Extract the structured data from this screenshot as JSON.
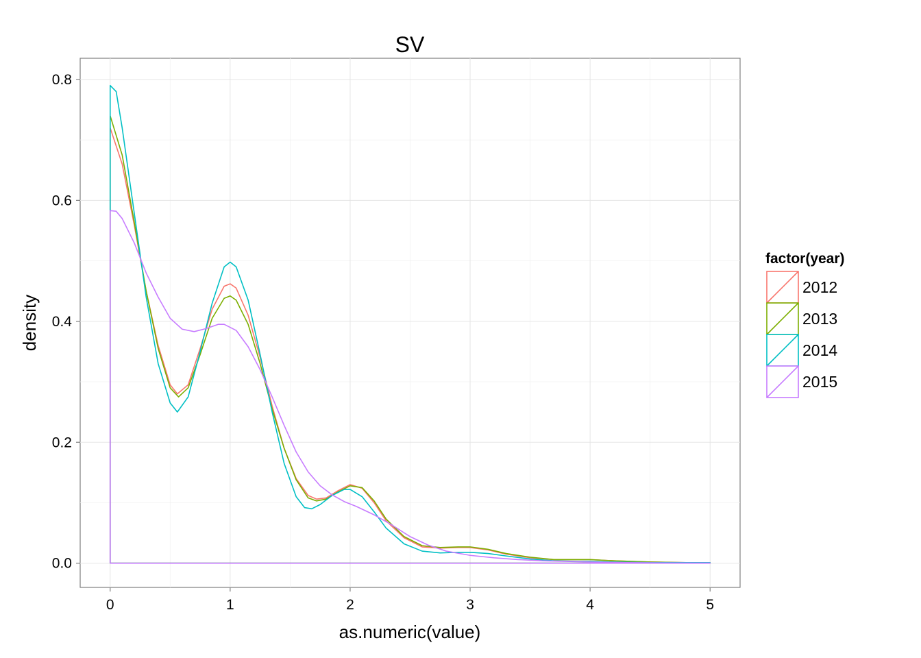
{
  "chart_data": {
    "type": "line",
    "title": "SV",
    "xlabel": "as.numeric(value)",
    "ylabel": "density",
    "xlim": [
      -0.25,
      5.25
    ],
    "ylim": [
      -0.04,
      0.835
    ],
    "xticks": [
      "0",
      "1",
      "2",
      "3",
      "4",
      "5"
    ],
    "yticks": [
      "0.0",
      "0.2",
      "0.4",
      "0.6",
      "0.8"
    ],
    "grid": true,
    "legend": {
      "title": "factor(year)",
      "position": "right"
    },
    "series": [
      {
        "name": "2012",
        "color": "#F8766D",
        "x": [
          0,
          0.1,
          0.2,
          0.3,
          0.4,
          0.5,
          0.56,
          0.65,
          0.75,
          0.85,
          0.95,
          1.0,
          1.05,
          1.15,
          1.25,
          1.35,
          1.45,
          1.55,
          1.65,
          1.72,
          1.8,
          1.9,
          2.0,
          2.1,
          2.2,
          2.3,
          2.45,
          2.6,
          2.75,
          2.9,
          3.0,
          3.15,
          3.3,
          3.5,
          3.7,
          3.9,
          4.0,
          4.2,
          4.5,
          4.8,
          5.0
        ],
        "y": [
          0.72,
          0.66,
          0.56,
          0.45,
          0.36,
          0.295,
          0.28,
          0.295,
          0.355,
          0.42,
          0.458,
          0.462,
          0.455,
          0.41,
          0.34,
          0.26,
          0.19,
          0.14,
          0.112,
          0.106,
          0.108,
          0.12,
          0.13,
          0.124,
          0.1,
          0.07,
          0.042,
          0.027,
          0.025,
          0.026,
          0.026,
          0.022,
          0.015,
          0.009,
          0.006,
          0.006,
          0.006,
          0.004,
          0.002,
          0.001,
          0.001
        ]
      },
      {
        "name": "2013",
        "color": "#7CAE00",
        "x": [
          0,
          0.1,
          0.2,
          0.3,
          0.4,
          0.5,
          0.57,
          0.65,
          0.75,
          0.85,
          0.95,
          1.0,
          1.05,
          1.15,
          1.25,
          1.35,
          1.45,
          1.55,
          1.65,
          1.72,
          1.8,
          1.9,
          2.0,
          2.1,
          2.2,
          2.3,
          2.45,
          2.6,
          2.75,
          2.9,
          3.0,
          3.15,
          3.3,
          3.5,
          3.7,
          3.9,
          4.0,
          4.2,
          4.5,
          4.8,
          5.0
        ],
        "y": [
          0.74,
          0.675,
          0.565,
          0.45,
          0.355,
          0.29,
          0.275,
          0.29,
          0.345,
          0.405,
          0.438,
          0.442,
          0.435,
          0.395,
          0.33,
          0.255,
          0.19,
          0.138,
          0.108,
          0.103,
          0.106,
          0.118,
          0.128,
          0.125,
          0.103,
          0.073,
          0.044,
          0.029,
          0.026,
          0.027,
          0.027,
          0.023,
          0.016,
          0.01,
          0.006,
          0.006,
          0.006,
          0.004,
          0.002,
          0.001,
          0.001
        ]
      },
      {
        "name": "2014",
        "color": "#00BFC4",
        "x": [
          0,
          0.05,
          0.1,
          0.2,
          0.3,
          0.4,
          0.5,
          0.56,
          0.65,
          0.75,
          0.85,
          0.95,
          1.0,
          1.05,
          1.15,
          1.25,
          1.35,
          1.45,
          1.55,
          1.62,
          1.68,
          1.75,
          1.85,
          1.95,
          2.0,
          2.1,
          2.2,
          2.3,
          2.45,
          2.6,
          2.75,
          2.9,
          3.0,
          3.15,
          3.3,
          3.5,
          3.7,
          3.9,
          4.0,
          4.2,
          4.5,
          4.8,
          5.0
        ],
        "y": [
          0.79,
          0.78,
          0.72,
          0.58,
          0.44,
          0.33,
          0.265,
          0.25,
          0.275,
          0.35,
          0.43,
          0.49,
          0.498,
          0.49,
          0.435,
          0.345,
          0.25,
          0.165,
          0.11,
          0.092,
          0.09,
          0.097,
          0.112,
          0.122,
          0.122,
          0.11,
          0.085,
          0.058,
          0.032,
          0.02,
          0.017,
          0.018,
          0.018,
          0.016,
          0.012,
          0.007,
          0.004,
          0.003,
          0.003,
          0.002,
          0.001,
          0.001,
          0.001
        ]
      },
      {
        "name": "2015",
        "color": "#C77CFF",
        "x": [
          0,
          0.05,
          0.1,
          0.2,
          0.3,
          0.4,
          0.5,
          0.6,
          0.7,
          0.8,
          0.9,
          0.95,
          1.05,
          1.15,
          1.25,
          1.35,
          1.45,
          1.55,
          1.65,
          1.75,
          1.85,
          1.95,
          2.05,
          2.2,
          2.35,
          2.5,
          2.65,
          2.8,
          3.0,
          3.2,
          3.4,
          3.6,
          3.8,
          4.0,
          4.3,
          4.6,
          5.0
        ],
        "y": [
          0.583,
          0.582,
          0.57,
          0.53,
          0.48,
          0.44,
          0.405,
          0.387,
          0.383,
          0.388,
          0.395,
          0.395,
          0.385,
          0.358,
          0.32,
          0.275,
          0.228,
          0.184,
          0.151,
          0.128,
          0.113,
          0.102,
          0.094,
          0.08,
          0.063,
          0.044,
          0.03,
          0.02,
          0.013,
          0.009,
          0.006,
          0.004,
          0.003,
          0.002,
          0.001,
          0.0005,
          0.0003
        ]
      }
    ]
  }
}
